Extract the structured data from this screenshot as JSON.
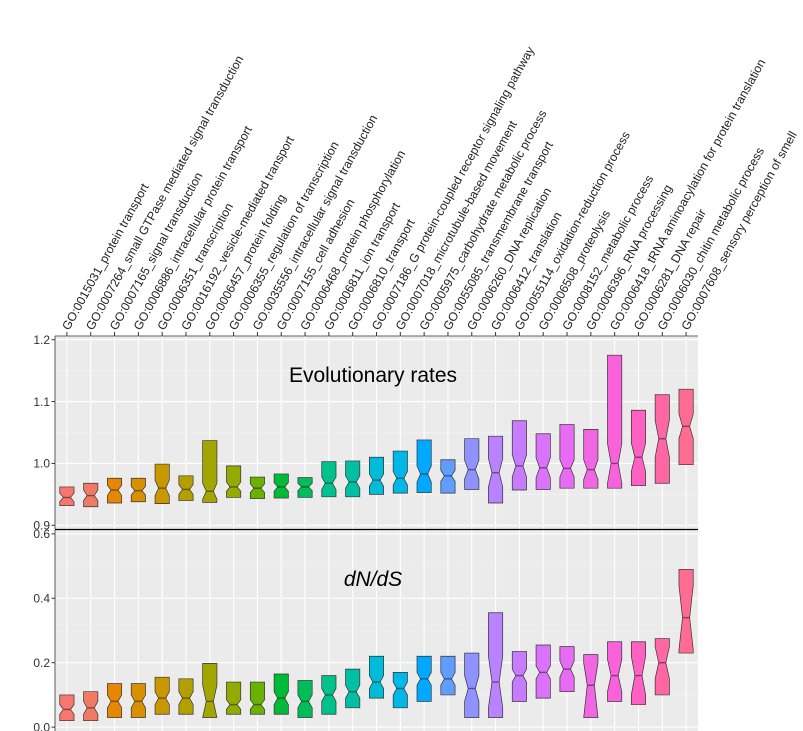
{
  "chart_data": {
    "type": "boxplot",
    "notched": true,
    "categories": [
      "GO:0015031_protein transport",
      "GO:0007264_small GTPase mediated signal transduction",
      "GO:0007165_signal transduction",
      "GO:0006886_intracellular protein transport",
      "GO:0006351_transcription",
      "GO:0016192_vesicle-mediated transport",
      "GO:0006457_protein folding",
      "GO:0006355_regulation of transcription",
      "GO:0035556_intracellular signal transduction",
      "GO:0007155_cell adhesion",
      "GO:0006468_protein phosphorylation",
      "GO:0006811_ion transport",
      "GO:0006810_transport",
      "GO:0007186_G protein-coupled receptor signaling pathway",
      "GO:0007018_microtubule-based movement",
      "GO:0005975_carbohydrate metabolic process",
      "GO:0055085_transmembrane transport",
      "GO:0006260_DNA replication",
      "GO:0006412_translation",
      "GO:0055114_oxidation-reduction process",
      "GO:0006508_proteolysis",
      "GO:0008152_metabolic process",
      "GO:0006396_RNA processing",
      "GO:0006418_tRNA aminoacylation for protein translation",
      "GO:0006281_DNA repair",
      "GO:0006030_chitin metabolic process",
      "GO:0007608_sensory perception of smell"
    ],
    "colors": [
      "#F8766D",
      "#F07B64",
      "#E58700",
      "#D89000",
      "#C99800",
      "#B49F00",
      "#A3A500",
      "#93AA00",
      "#6BB100",
      "#00BA38",
      "#00BC59",
      "#00C08B",
      "#00BFA4",
      "#00BCD8",
      "#00B8E7",
      "#00A9FF",
      "#619CFF",
      "#8F92FF",
      "#B983FF",
      "#C77CFF",
      "#DB72FB",
      "#E76BF3",
      "#F066E3",
      "#FA62DB",
      "#FF61C3",
      "#FF67A4",
      "#FF6C91"
    ],
    "panels": [
      {
        "title": "Evolutionary rates",
        "title_italic": false,
        "ylim": [
          0.9,
          1.2
        ],
        "yticks": [
          0.9,
          1.0,
          1.1,
          1.2
        ],
        "ytick_labels": [
          "0.9",
          "1.0",
          "1.1",
          "1.2"
        ],
        "boxes": [
          {
            "q1": 0.932,
            "median": 0.945,
            "q3": 0.962,
            "nlo": 0.938,
            "nhi": 0.952
          },
          {
            "q1": 0.93,
            "median": 0.948,
            "q3": 0.968,
            "nlo": 0.94,
            "nhi": 0.957
          },
          {
            "q1": 0.936,
            "median": 0.957,
            "q3": 0.976,
            "nlo": 0.948,
            "nhi": 0.965
          },
          {
            "q1": 0.938,
            "median": 0.956,
            "q3": 0.976,
            "nlo": 0.949,
            "nhi": 0.963
          },
          {
            "q1": 0.935,
            "median": 0.96,
            "q3": 0.999,
            "nlo": 0.948,
            "nhi": 0.973
          },
          {
            "q1": 0.94,
            "median": 0.958,
            "q3": 0.98,
            "nlo": 0.95,
            "nhi": 0.966
          },
          {
            "q1": 0.937,
            "median": 0.955,
            "q3": 1.037,
            "nlo": 0.942,
            "nhi": 0.968
          },
          {
            "q1": 0.945,
            "median": 0.962,
            "q3": 0.996,
            "nlo": 0.955,
            "nhi": 0.97
          },
          {
            "q1": 0.943,
            "median": 0.96,
            "q3": 0.978,
            "nlo": 0.953,
            "nhi": 0.967
          },
          {
            "q1": 0.944,
            "median": 0.962,
            "q3": 0.983,
            "nlo": 0.955,
            "nhi": 0.969
          },
          {
            "q1": 0.945,
            "median": 0.962,
            "q3": 0.977,
            "nlo": 0.956,
            "nhi": 0.968
          },
          {
            "q1": 0.946,
            "median": 0.968,
            "q3": 1.003,
            "nlo": 0.958,
            "nhi": 0.978
          },
          {
            "q1": 0.946,
            "median": 0.97,
            "q3": 1.004,
            "nlo": 0.96,
            "nhi": 0.98
          },
          {
            "q1": 0.95,
            "median": 0.973,
            "q3": 1.01,
            "nlo": 0.963,
            "nhi": 0.983
          },
          {
            "q1": 0.952,
            "median": 0.976,
            "q3": 1.02,
            "nlo": 0.965,
            "nhi": 0.987
          },
          {
            "q1": 0.953,
            "median": 0.983,
            "q3": 1.038,
            "nlo": 0.97,
            "nhi": 0.996
          },
          {
            "q1": 0.952,
            "median": 0.98,
            "q3": 1.006,
            "nlo": 0.971,
            "nhi": 0.989
          },
          {
            "q1": 0.958,
            "median": 0.99,
            "q3": 1.04,
            "nlo": 0.975,
            "nhi": 1.005
          },
          {
            "q1": 0.936,
            "median": 0.985,
            "q3": 1.044,
            "nlo": 0.962,
            "nhi": 1.008
          },
          {
            "q1": 0.957,
            "median": 0.996,
            "q3": 1.069,
            "nlo": 0.978,
            "nhi": 1.014
          },
          {
            "q1": 0.958,
            "median": 0.993,
            "q3": 1.048,
            "nlo": 0.977,
            "nhi": 1.009
          },
          {
            "q1": 0.96,
            "median": 0.992,
            "q3": 1.063,
            "nlo": 0.978,
            "nhi": 1.006
          },
          {
            "q1": 0.96,
            "median": 0.99,
            "q3": 1.055,
            "nlo": 0.974,
            "nhi": 1.006
          },
          {
            "q1": 0.96,
            "median": 1.0,
            "q3": 1.175,
            "nlo": 0.968,
            "nhi": 1.032
          },
          {
            "q1": 0.964,
            "median": 1.01,
            "q3": 1.086,
            "nlo": 0.987,
            "nhi": 1.033
          },
          {
            "q1": 0.968,
            "median": 1.04,
            "q3": 1.111,
            "nlo": 1.01,
            "nhi": 1.07
          },
          {
            "q1": 0.998,
            "median": 1.06,
            "q3": 1.12,
            "nlo": 1.04,
            "nhi": 1.08
          }
        ]
      },
      {
        "title": "dN/dS",
        "title_italic": true,
        "ylim": [
          0.0,
          0.6
        ],
        "yticks": [
          0.0,
          0.2,
          0.4,
          0.6
        ],
        "ytick_labels": [
          "0.0",
          "0.2",
          "0.4",
          "0.6"
        ],
        "boxes": [
          {
            "q1": 0.02,
            "median": 0.055,
            "q3": 0.1,
            "nlo": 0.04,
            "nhi": 0.07
          },
          {
            "q1": 0.02,
            "median": 0.06,
            "q3": 0.11,
            "nlo": 0.04,
            "nhi": 0.08
          },
          {
            "q1": 0.03,
            "median": 0.08,
            "q3": 0.135,
            "nlo": 0.06,
            "nhi": 0.1
          },
          {
            "q1": 0.03,
            "median": 0.08,
            "q3": 0.135,
            "nlo": 0.06,
            "nhi": 0.1
          },
          {
            "q1": 0.04,
            "median": 0.09,
            "q3": 0.155,
            "nlo": 0.07,
            "nhi": 0.11
          },
          {
            "q1": 0.04,
            "median": 0.09,
            "q3": 0.15,
            "nlo": 0.07,
            "nhi": 0.11
          },
          {
            "q1": 0.03,
            "median": 0.08,
            "q3": 0.198,
            "nlo": 0.03,
            "nhi": 0.13
          },
          {
            "q1": 0.04,
            "median": 0.07,
            "q3": 0.14,
            "nlo": 0.055,
            "nhi": 0.085
          },
          {
            "q1": 0.04,
            "median": 0.07,
            "q3": 0.14,
            "nlo": 0.055,
            "nhi": 0.085
          },
          {
            "q1": 0.04,
            "median": 0.09,
            "q3": 0.165,
            "nlo": 0.07,
            "nhi": 0.11
          },
          {
            "q1": 0.03,
            "median": 0.08,
            "q3": 0.145,
            "nlo": 0.06,
            "nhi": 0.1
          },
          {
            "q1": 0.04,
            "median": 0.1,
            "q3": 0.16,
            "nlo": 0.08,
            "nhi": 0.12
          },
          {
            "q1": 0.06,
            "median": 0.11,
            "q3": 0.18,
            "nlo": 0.09,
            "nhi": 0.13
          },
          {
            "q1": 0.09,
            "median": 0.14,
            "q3": 0.22,
            "nlo": 0.12,
            "nhi": 0.16
          },
          {
            "q1": 0.06,
            "median": 0.12,
            "q3": 0.17,
            "nlo": 0.1,
            "nhi": 0.14
          },
          {
            "q1": 0.08,
            "median": 0.15,
            "q3": 0.22,
            "nlo": 0.13,
            "nhi": 0.17
          },
          {
            "q1": 0.1,
            "median": 0.15,
            "q3": 0.22,
            "nlo": 0.13,
            "nhi": 0.17
          },
          {
            "q1": 0.03,
            "median": 0.12,
            "q3": 0.23,
            "nlo": 0.08,
            "nhi": 0.16
          },
          {
            "q1": 0.03,
            "median": 0.14,
            "q3": 0.355,
            "nlo": 0.06,
            "nhi": 0.22
          },
          {
            "q1": 0.08,
            "median": 0.16,
            "q3": 0.235,
            "nlo": 0.14,
            "nhi": 0.18
          },
          {
            "q1": 0.09,
            "median": 0.17,
            "q3": 0.255,
            "nlo": 0.15,
            "nhi": 0.19
          },
          {
            "q1": 0.11,
            "median": 0.18,
            "q3": 0.25,
            "nlo": 0.155,
            "nhi": 0.205
          },
          {
            "q1": 0.03,
            "median": 0.13,
            "q3": 0.225,
            "nlo": 0.03,
            "nhi": 0.2
          },
          {
            "q1": 0.08,
            "median": 0.16,
            "q3": 0.265,
            "nlo": 0.11,
            "nhi": 0.21
          },
          {
            "q1": 0.07,
            "median": 0.16,
            "q3": 0.265,
            "nlo": 0.1,
            "nhi": 0.22
          },
          {
            "q1": 0.1,
            "median": 0.2,
            "q3": 0.275,
            "nlo": 0.15,
            "nhi": 0.25
          },
          {
            "q1": 0.23,
            "median": 0.34,
            "q3": 0.49,
            "nlo": 0.24,
            "nhi": 0.44
          }
        ]
      }
    ]
  }
}
